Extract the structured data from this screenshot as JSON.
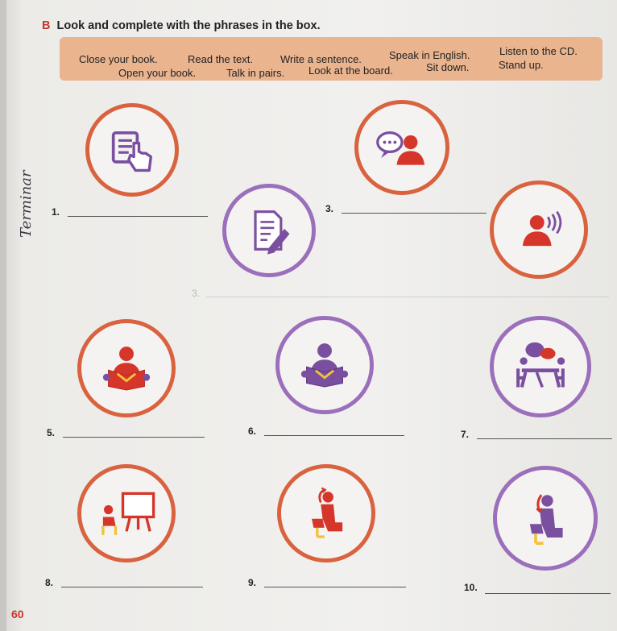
{
  "exercise": {
    "letter": "B",
    "instruction": "Look and complete with the phrases in the box."
  },
  "phrase_box": {
    "row1": [
      "Close your book.",
      "Read the text.",
      "Write a sentence.",
      "Speak in English.",
      "Listen to the CD."
    ],
    "row2": [
      "Open your book.",
      "Talk in pairs.",
      "Look at the board.",
      "Sit down.",
      "Stand up."
    ]
  },
  "items": [
    "1.",
    "3.",
    "5.",
    "6.",
    "7.",
    "8.",
    "9.",
    "10."
  ],
  "faint_number": "3.",
  "page_number": "60",
  "handwritten_note": "Terminar",
  "colors": {
    "orange": "#d9623f",
    "purple": "#9b6fbb",
    "box": "#eab48f",
    "accent_red": "#c8362a"
  }
}
